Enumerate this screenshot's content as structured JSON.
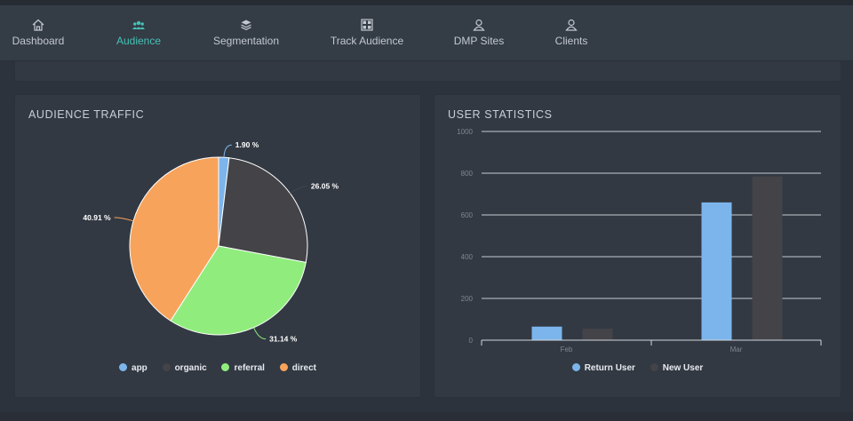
{
  "nav": {
    "items": [
      {
        "label": "Dashboard",
        "icon": "home-icon",
        "active": false
      },
      {
        "label": "Audience",
        "icon": "users-icon",
        "active": true
      },
      {
        "label": "Segmentation",
        "icon": "layers-icon",
        "active": false
      },
      {
        "label": "Track Audience",
        "icon": "grid-icon",
        "active": false
      },
      {
        "label": "DMP Sites",
        "icon": "user-icon",
        "active": false
      },
      {
        "label": "Clients",
        "icon": "user-icon",
        "active": false
      }
    ]
  },
  "colors": {
    "accent": "#46c2b4",
    "app": "#7cb5ec",
    "organic": "#434348",
    "referral": "#90ed7d",
    "direct": "#f7a35c"
  },
  "chart_data": [
    {
      "type": "pie",
      "title": "AUDIENCE TRAFFIC",
      "labels": [
        "app",
        "organic",
        "referral",
        "direct"
      ],
      "values": [
        1.9,
        26.05,
        31.14,
        40.91
      ],
      "data_labels": [
        "1.90 %",
        "26.05 %",
        "31.14 %",
        "40.91 %"
      ],
      "legend": "bottom-center"
    },
    {
      "type": "bar",
      "title": "USER STATISTICS",
      "categories": [
        "Feb",
        "Mar"
      ],
      "series": [
        {
          "name": "Return User",
          "values": [
            65,
            660
          ]
        },
        {
          "name": "New User",
          "values": [
            55,
            785
          ]
        }
      ],
      "yticks": [
        "0",
        "200",
        "400",
        "600",
        "800",
        "1000"
      ],
      "ylim": [
        0,
        1000
      ],
      "grid": true,
      "legend": "bottom-center"
    }
  ]
}
